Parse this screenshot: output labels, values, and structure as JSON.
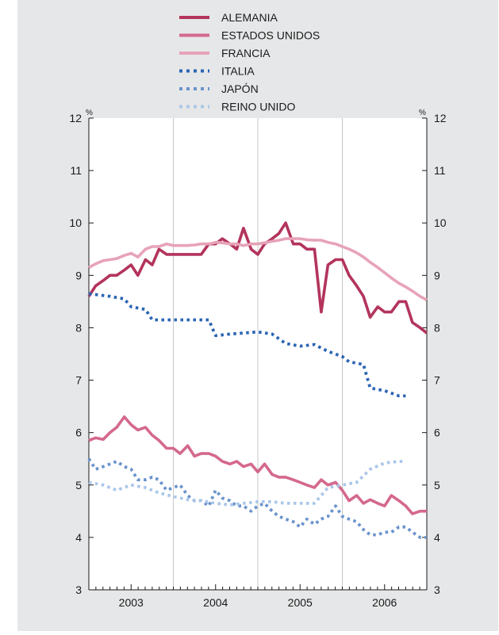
{
  "chart_data": {
    "type": "line",
    "y_unit_left": "%",
    "y_unit_right": "%",
    "ylim": [
      3,
      12
    ],
    "yticks": [
      "3",
      "4",
      "5",
      "6",
      "7",
      "8",
      "9",
      "10",
      "11",
      "12"
    ],
    "xlim": [
      2002.5,
      2006.5
    ],
    "xlabels": [
      {
        "label": "2003",
        "x": 2003
      },
      {
        "label": "2004",
        "x": 2004
      },
      {
        "label": "2005",
        "x": 2005
      },
      {
        "label": "2006",
        "x": 2006
      }
    ],
    "grid": "vertical at year boundaries",
    "legend_position": "top",
    "series": [
      {
        "name": "ALEMANIA",
        "color": "#b3345c",
        "style": "solid",
        "points": [
          [
            2002.5,
            8.6
          ],
          [
            2002.58,
            8.8
          ],
          [
            2002.67,
            8.9
          ],
          [
            2002.75,
            9.0
          ],
          [
            2002.83,
            9.0
          ],
          [
            2002.92,
            9.1
          ],
          [
            2003.0,
            9.2
          ],
          [
            2003.08,
            9.0
          ],
          [
            2003.17,
            9.3
          ],
          [
            2003.25,
            9.2
          ],
          [
            2003.33,
            9.5
          ],
          [
            2003.42,
            9.4
          ],
          [
            2003.5,
            9.4
          ],
          [
            2003.58,
            9.4
          ],
          [
            2003.67,
            9.4
          ],
          [
            2003.75,
            9.4
          ],
          [
            2003.83,
            9.4
          ],
          [
            2003.92,
            9.6
          ],
          [
            2004.0,
            9.6
          ],
          [
            2004.08,
            9.7
          ],
          [
            2004.17,
            9.6
          ],
          [
            2004.25,
            9.5
          ],
          [
            2004.33,
            9.9
          ],
          [
            2004.42,
            9.5
          ],
          [
            2004.5,
            9.4
          ],
          [
            2004.58,
            9.6
          ],
          [
            2004.67,
            9.7
          ],
          [
            2004.75,
            9.8
          ],
          [
            2004.83,
            10.0
          ],
          [
            2004.92,
            9.6
          ],
          [
            2005.0,
            9.6
          ],
          [
            2005.08,
            9.5
          ],
          [
            2005.17,
            9.5
          ],
          [
            2005.25,
            8.3
          ],
          [
            2005.33,
            9.2
          ],
          [
            2005.42,
            9.3
          ],
          [
            2005.5,
            9.3
          ],
          [
            2005.58,
            9.0
          ],
          [
            2005.67,
            8.8
          ],
          [
            2005.75,
            8.6
          ],
          [
            2005.83,
            8.2
          ],
          [
            2005.92,
            8.4
          ],
          [
            2006.0,
            8.3
          ],
          [
            2006.08,
            8.3
          ],
          [
            2006.17,
            8.5
          ],
          [
            2006.25,
            8.5
          ],
          [
            2006.33,
            8.1
          ],
          [
            2006.42,
            8.0
          ],
          [
            2006.5,
            7.9
          ]
        ]
      },
      {
        "name": "ESTADOS UNIDOS",
        "color": "#d4688e",
        "style": "solid",
        "points": [
          [
            2002.5,
            5.85
          ],
          [
            2002.58,
            5.9
          ],
          [
            2002.67,
            5.87
          ],
          [
            2002.75,
            6.0
          ],
          [
            2002.83,
            6.1
          ],
          [
            2002.92,
            6.3
          ],
          [
            2003.0,
            6.15
          ],
          [
            2003.08,
            6.05
          ],
          [
            2003.17,
            6.1
          ],
          [
            2003.25,
            5.95
          ],
          [
            2003.33,
            5.85
          ],
          [
            2003.42,
            5.7
          ],
          [
            2003.5,
            5.7
          ],
          [
            2003.58,
            5.6
          ],
          [
            2003.67,
            5.75
          ],
          [
            2003.75,
            5.55
          ],
          [
            2003.83,
            5.6
          ],
          [
            2003.92,
            5.6
          ],
          [
            2004.0,
            5.55
          ],
          [
            2004.08,
            5.45
          ],
          [
            2004.17,
            5.4
          ],
          [
            2004.25,
            5.45
          ],
          [
            2004.33,
            5.35
          ],
          [
            2004.42,
            5.4
          ],
          [
            2004.5,
            5.25
          ],
          [
            2004.58,
            5.4
          ],
          [
            2004.67,
            5.2
          ],
          [
            2004.75,
            5.15
          ],
          [
            2004.83,
            5.15
          ],
          [
            2004.92,
            5.1
          ],
          [
            2005.0,
            5.05
          ],
          [
            2005.08,
            5.0
          ],
          [
            2005.17,
            4.95
          ],
          [
            2005.25,
            5.1
          ],
          [
            2005.33,
            5.0
          ],
          [
            2005.42,
            5.05
          ],
          [
            2005.5,
            4.9
          ],
          [
            2005.58,
            4.7
          ],
          [
            2005.67,
            4.8
          ],
          [
            2005.75,
            4.65
          ],
          [
            2005.83,
            4.72
          ],
          [
            2005.92,
            4.65
          ],
          [
            2006.0,
            4.6
          ],
          [
            2006.08,
            4.8
          ],
          [
            2006.17,
            4.7
          ],
          [
            2006.25,
            4.6
          ],
          [
            2006.33,
            4.45
          ],
          [
            2006.42,
            4.5
          ],
          [
            2006.5,
            4.5
          ]
        ]
      },
      {
        "name": "FRANCIA",
        "color": "#e7a3b8",
        "style": "solid",
        "points": [
          [
            2002.5,
            9.15
          ],
          [
            2002.58,
            9.22
          ],
          [
            2002.67,
            9.28
          ],
          [
            2002.75,
            9.3
          ],
          [
            2002.83,
            9.32
          ],
          [
            2002.92,
            9.38
          ],
          [
            2003.0,
            9.42
          ],
          [
            2003.08,
            9.35
          ],
          [
            2003.17,
            9.5
          ],
          [
            2003.25,
            9.55
          ],
          [
            2003.33,
            9.55
          ],
          [
            2003.42,
            9.6
          ],
          [
            2003.5,
            9.57
          ],
          [
            2003.58,
            9.57
          ],
          [
            2003.67,
            9.57
          ],
          [
            2003.75,
            9.58
          ],
          [
            2003.83,
            9.6
          ],
          [
            2003.92,
            9.6
          ],
          [
            2004.0,
            9.63
          ],
          [
            2004.08,
            9.62
          ],
          [
            2004.17,
            9.6
          ],
          [
            2004.25,
            9.6
          ],
          [
            2004.33,
            9.57
          ],
          [
            2004.42,
            9.6
          ],
          [
            2004.5,
            9.6
          ],
          [
            2004.58,
            9.62
          ],
          [
            2004.67,
            9.65
          ],
          [
            2004.75,
            9.67
          ],
          [
            2004.83,
            9.7
          ],
          [
            2004.92,
            9.7
          ],
          [
            2005.0,
            9.7
          ],
          [
            2005.08,
            9.68
          ],
          [
            2005.17,
            9.67
          ],
          [
            2005.25,
            9.67
          ],
          [
            2005.33,
            9.63
          ],
          [
            2005.42,
            9.6
          ],
          [
            2005.5,
            9.55
          ],
          [
            2005.58,
            9.5
          ],
          [
            2005.67,
            9.43
          ],
          [
            2005.75,
            9.35
          ],
          [
            2005.83,
            9.25
          ],
          [
            2005.92,
            9.15
          ],
          [
            2006.0,
            9.05
          ],
          [
            2006.08,
            8.95
          ],
          [
            2006.17,
            8.85
          ],
          [
            2006.25,
            8.78
          ],
          [
            2006.33,
            8.7
          ],
          [
            2006.42,
            8.6
          ],
          [
            2006.5,
            8.53
          ]
        ]
      },
      {
        "name": "ITALIA",
        "color": "#2b64b4",
        "style": "dotted",
        "points": [
          [
            2002.5,
            8.65
          ],
          [
            2002.75,
            8.6
          ],
          [
            2002.92,
            8.55
          ],
          [
            2003.0,
            8.4
          ],
          [
            2003.17,
            8.35
          ],
          [
            2003.25,
            8.15
          ],
          [
            2003.5,
            8.15
          ],
          [
            2003.75,
            8.15
          ],
          [
            2003.92,
            8.15
          ],
          [
            2004.0,
            7.85
          ],
          [
            2004.17,
            7.88
          ],
          [
            2004.33,
            7.9
          ],
          [
            2004.5,
            7.92
          ],
          [
            2004.67,
            7.88
          ],
          [
            2004.83,
            7.7
          ],
          [
            2005.0,
            7.65
          ],
          [
            2005.17,
            7.68
          ],
          [
            2005.33,
            7.55
          ],
          [
            2005.5,
            7.45
          ],
          [
            2005.58,
            7.35
          ],
          [
            2005.75,
            7.3
          ],
          [
            2005.83,
            6.85
          ],
          [
            2006.0,
            6.8
          ],
          [
            2006.17,
            6.7
          ],
          [
            2006.25,
            6.7
          ]
        ]
      },
      {
        "name": "JAPÓN",
        "color": "#6a93cc",
        "style": "dotted",
        "points": [
          [
            2002.5,
            5.5
          ],
          [
            2002.58,
            5.3
          ],
          [
            2002.67,
            5.35
          ],
          [
            2002.75,
            5.4
          ],
          [
            2002.83,
            5.45
          ],
          [
            2002.92,
            5.35
          ],
          [
            2003.0,
            5.3
          ],
          [
            2003.08,
            5.1
          ],
          [
            2003.17,
            5.1
          ],
          [
            2003.25,
            5.15
          ],
          [
            2003.33,
            5.1
          ],
          [
            2003.42,
            4.9
          ],
          [
            2003.5,
            4.95
          ],
          [
            2003.58,
            5.0
          ],
          [
            2003.67,
            4.8
          ],
          [
            2003.75,
            4.7
          ],
          [
            2003.83,
            4.7
          ],
          [
            2003.92,
            4.6
          ],
          [
            2004.0,
            4.9
          ],
          [
            2004.08,
            4.75
          ],
          [
            2004.17,
            4.7
          ],
          [
            2004.25,
            4.6
          ],
          [
            2004.33,
            4.6
          ],
          [
            2004.42,
            4.5
          ],
          [
            2004.5,
            4.6
          ],
          [
            2004.58,
            4.65
          ],
          [
            2004.67,
            4.5
          ],
          [
            2004.75,
            4.4
          ],
          [
            2004.83,
            4.35
          ],
          [
            2004.92,
            4.3
          ],
          [
            2005.0,
            4.2
          ],
          [
            2005.08,
            4.35
          ],
          [
            2005.17,
            4.25
          ],
          [
            2005.25,
            4.35
          ],
          [
            2005.33,
            4.4
          ],
          [
            2005.42,
            4.6
          ],
          [
            2005.5,
            4.4
          ],
          [
            2005.58,
            4.35
          ],
          [
            2005.67,
            4.3
          ],
          [
            2005.75,
            4.15
          ],
          [
            2005.83,
            4.05
          ],
          [
            2005.92,
            4.05
          ],
          [
            2006.0,
            4.1
          ],
          [
            2006.08,
            4.1
          ],
          [
            2006.17,
            4.2
          ],
          [
            2006.25,
            4.2
          ],
          [
            2006.33,
            4.1
          ],
          [
            2006.42,
            4.0
          ],
          [
            2006.5,
            4.0
          ]
        ]
      },
      {
        "name": "REINO UNIDO",
        "color": "#a9c6e8",
        "style": "dotted",
        "points": [
          [
            2002.5,
            5.05
          ],
          [
            2002.67,
            5.0
          ],
          [
            2002.83,
            4.9
          ],
          [
            2003.0,
            5.0
          ],
          [
            2003.17,
            4.95
          ],
          [
            2003.33,
            4.85
          ],
          [
            2003.5,
            4.78
          ],
          [
            2003.67,
            4.72
          ],
          [
            2003.83,
            4.7
          ],
          [
            2004.0,
            4.65
          ],
          [
            2004.17,
            4.62
          ],
          [
            2004.33,
            4.65
          ],
          [
            2004.5,
            4.68
          ],
          [
            2004.67,
            4.68
          ],
          [
            2004.83,
            4.65
          ],
          [
            2005.0,
            4.65
          ],
          [
            2005.17,
            4.65
          ],
          [
            2005.33,
            4.95
          ],
          [
            2005.5,
            5.0
          ],
          [
            2005.67,
            5.05
          ],
          [
            2005.83,
            5.3
          ],
          [
            2006.0,
            5.42
          ],
          [
            2006.17,
            5.45
          ],
          [
            2006.25,
            5.45
          ]
        ]
      }
    ]
  }
}
